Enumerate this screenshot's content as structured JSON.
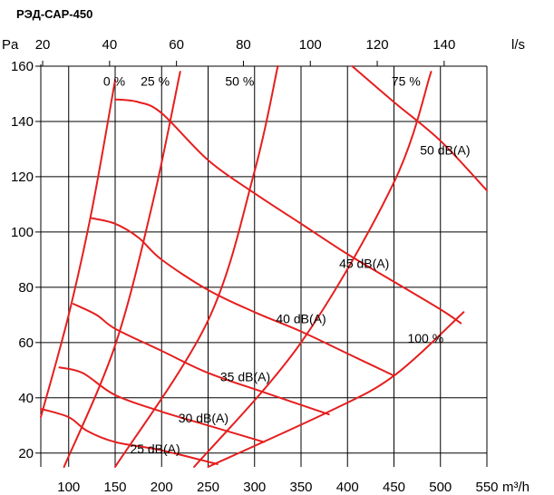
{
  "chart_data": {
    "type": "line",
    "title": "РЭД-САР-450",
    "ylabel": "Pa",
    "xlabel": "m³/h",
    "x2label": "l/s",
    "xlim": [
      70,
      550
    ],
    "ylim": [
      15,
      160
    ],
    "x_ticks": [
      100,
      150,
      200,
      250,
      300,
      350,
      400,
      450,
      500,
      550
    ],
    "x_tick_labels": [
      "100",
      "150",
      "200",
      "250",
      "300",
      "350",
      "400",
      "450",
      "500",
      "550"
    ],
    "x2_ticks": [
      20,
      40,
      60,
      80,
      100,
      120,
      140
    ],
    "x2_tick_labels": [
      "20",
      "40",
      "60",
      "80",
      "100",
      "120",
      "140"
    ],
    "y_ticks": [
      20,
      40,
      60,
      80,
      100,
      120,
      140,
      160
    ],
    "y_tick_labels": [
      "20",
      "40",
      "60",
      "80",
      "100",
      "120",
      "140",
      "160"
    ],
    "grid": true,
    "colors": {
      "curve": "#e61e1e",
      "grid": "#000000"
    },
    "damper_curves": [
      {
        "name": "0 %",
        "points": [
          [
            70,
            33
          ],
          [
            100,
            70
          ],
          [
            125,
            108
          ],
          [
            150,
            155
          ]
        ]
      },
      {
        "name": "25 %",
        "points": [
          [
            95,
            15
          ],
          [
            150,
            59
          ],
          [
            190,
            110
          ],
          [
            220,
            158
          ]
        ]
      },
      {
        "name": "50 %",
        "points": [
          [
            150,
            15
          ],
          [
            250,
            68
          ],
          [
            300,
            122
          ],
          [
            325,
            160
          ]
        ]
      },
      {
        "name": "75 %",
        "points": [
          [
            235,
            15
          ],
          [
            350,
            60
          ],
          [
            450,
            118
          ],
          [
            490,
            158
          ]
        ]
      },
      {
        "name": "100 %",
        "points": [
          [
            250,
            15
          ],
          [
            380,
            35
          ],
          [
            450,
            48
          ],
          [
            525,
            71
          ]
        ]
      }
    ],
    "sound_curves": [
      {
        "name": "25 dB(A)",
        "points": [
          [
            70,
            36
          ],
          [
            100,
            33
          ],
          [
            120,
            28
          ],
          [
            150,
            24
          ],
          [
            200,
            21
          ],
          [
            260,
            16
          ]
        ]
      },
      {
        "name": "30 dB(A)",
        "points": [
          [
            90,
            51
          ],
          [
            115,
            49
          ],
          [
            150,
            41
          ],
          [
            200,
            35
          ],
          [
            250,
            30
          ],
          [
            310,
            24
          ]
        ]
      },
      {
        "name": "35 dB(A)",
        "points": [
          [
            105,
            74
          ],
          [
            130,
            70
          ],
          [
            150,
            65
          ],
          [
            200,
            57
          ],
          [
            250,
            49
          ],
          [
            310,
            42
          ],
          [
            380,
            34
          ]
        ]
      },
      {
        "name": "40 dB(A)",
        "points": [
          [
            125,
            105
          ],
          [
            150,
            103
          ],
          [
            175,
            98
          ],
          [
            200,
            90
          ],
          [
            250,
            79
          ],
          [
            300,
            71
          ],
          [
            350,
            64
          ],
          [
            400,
            56
          ],
          [
            450,
            48
          ]
        ]
      },
      {
        "name": "45 dB(A)",
        "points": [
          [
            150,
            148
          ],
          [
            175,
            147
          ],
          [
            200,
            143
          ],
          [
            250,
            126
          ],
          [
            300,
            114
          ],
          [
            350,
            103
          ],
          [
            400,
            92
          ],
          [
            450,
            82
          ],
          [
            500,
            72
          ],
          [
            522,
            67
          ]
        ]
      },
      {
        "name": "50 dB(A)",
        "points": [
          [
            405,
            160
          ],
          [
            450,
            147
          ],
          [
            500,
            133
          ],
          [
            550,
            115
          ]
        ]
      }
    ],
    "annotations": [
      {
        "text": "0 %",
        "x": 149,
        "y": 153
      },
      {
        "text": "25 %",
        "x": 193,
        "y": 153
      },
      {
        "text": "50 %",
        "x": 284,
        "y": 153
      },
      {
        "text": "75 %",
        "x": 463,
        "y": 153
      },
      {
        "text": "100 %",
        "x": 484,
        "y": 60
      },
      {
        "text": "50 dB(A)",
        "x": 505,
        "y": 128
      },
      {
        "text": "45 dB(A)",
        "x": 418,
        "y": 87
      },
      {
        "text": "40 dB(A)",
        "x": 350,
        "y": 67
      },
      {
        "text": "35 dB(A)",
        "x": 290,
        "y": 46
      },
      {
        "text": "30 dB(A)",
        "x": 245,
        "y": 31
      },
      {
        "text": "25 dB(A)",
        "x": 193,
        "y": 20
      }
    ]
  }
}
